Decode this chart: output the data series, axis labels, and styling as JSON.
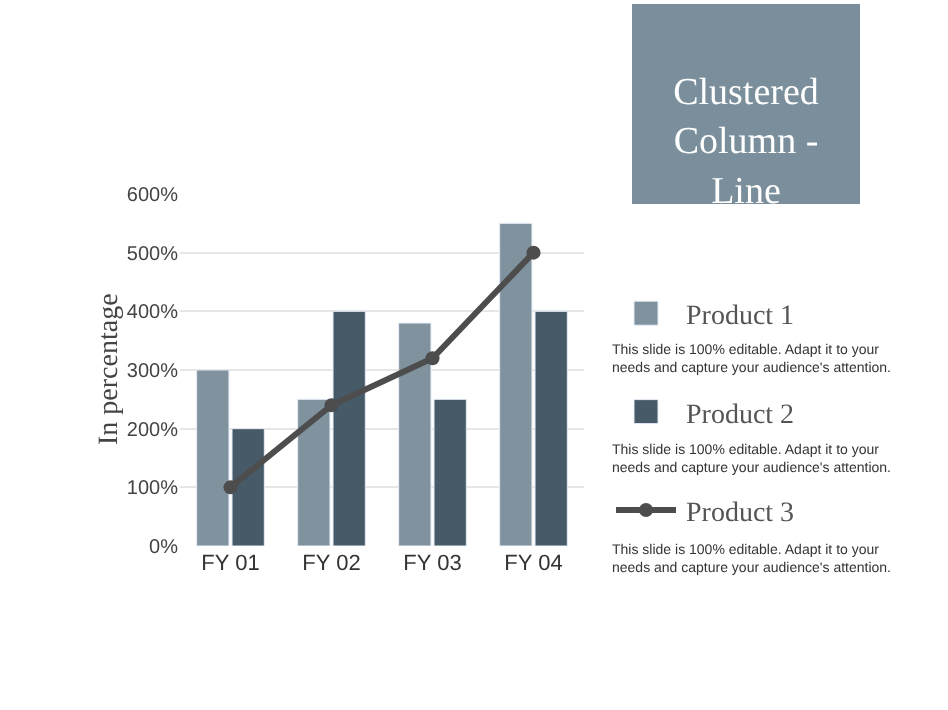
{
  "chart_data": {
    "type": "bar",
    "title": "Clustered Column - Line",
    "ylabel": "In percentage",
    "categories": [
      "FY 01",
      "FY 02",
      "FY 03",
      "FY 04"
    ],
    "series": [
      {
        "name": "Product 1",
        "color": "#7f929e",
        "values": [
          300,
          250,
          380,
          550
        ]
      },
      {
        "name": "Product 2",
        "color": "#465a68",
        "values": [
          200,
          400,
          250,
          400
        ]
      },
      {
        "name": "Product 3",
        "type": "line",
        "color": "#4d4d4d",
        "values": [
          100,
          240,
          320,
          500
        ]
      }
    ],
    "annotations": [
      "This slide is 100% editable. Adapt it to your needs and capture your audience's attention.",
      "This slide is 100% editable. Adapt it to your needs and capture your audience's attention.",
      "This slide is 100% editable. Adapt it to your needs and capture your audience's attention."
    ],
    "ylim": [
      0,
      600
    ],
    "yticks": [
      {
        "value": 0,
        "label": "0%"
      },
      {
        "value": 100,
        "label": "100%"
      },
      {
        "value": 200,
        "label": "200%"
      },
      {
        "value": 300,
        "label": "300%"
      },
      {
        "value": 400,
        "label": "400%"
      },
      {
        "value": 500,
        "label": "500%"
      },
      {
        "value": 600,
        "label": "600%"
      }
    ],
    "grid": "y",
    "legend": "right",
    "marker": "circle"
  }
}
